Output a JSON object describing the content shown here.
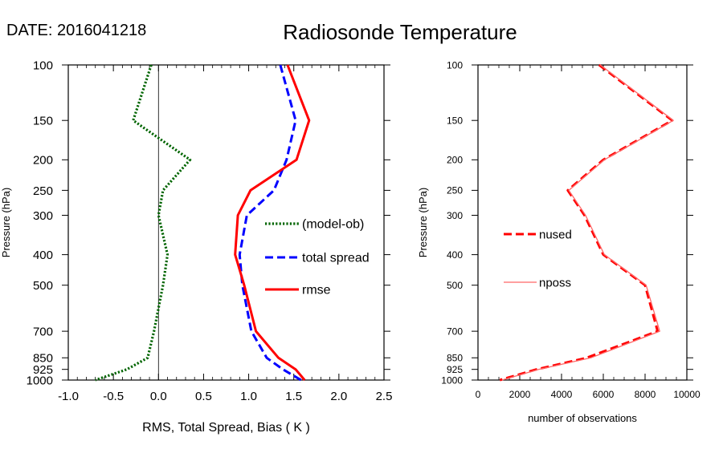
{
  "header": {
    "date_label": "DATE: 2016041218",
    "title": "Radiosonde Temperature"
  },
  "colors": {
    "model_ob": "#006400",
    "total_spread": "#0000ff",
    "rmse": "#ff0000",
    "nused": "#ff0000",
    "nposs": "#ff6666"
  },
  "chart_data": [
    {
      "type": "line",
      "title": "",
      "xlabel": "RMS, Total Spread, Bias ( K )",
      "ylabel": "Pressure (hPa)",
      "xlim": [
        -1.0,
        2.5
      ],
      "ylim": [
        1000,
        100
      ],
      "y_scale": "log",
      "y_inverted": true,
      "x_ticks": [
        "-1.0",
        "-0.5",
        "0.0",
        "0.5",
        "1.0",
        "1.5",
        "2.0",
        "2.5"
      ],
      "x_tick_values": [
        -1.0,
        -0.5,
        0.0,
        0.5,
        1.0,
        1.5,
        2.0,
        2.5
      ],
      "y_ticks": [
        "100",
        "150",
        "200",
        "250",
        "300",
        "400",
        "500",
        "700",
        "850",
        "925",
        "1000"
      ],
      "y_tick_values": [
        100,
        150,
        200,
        250,
        300,
        400,
        500,
        700,
        850,
        925,
        1000
      ],
      "zero_line": true,
      "legend": "right-middle",
      "series": [
        {
          "name": "(model-ob)",
          "style": "dotted",
          "color": "#006400",
          "points": [
            [
              -0.08,
              100
            ],
            [
              -0.28,
              150
            ],
            [
              0.35,
              200
            ],
            [
              0.05,
              250
            ],
            [
              0.0,
              300
            ],
            [
              0.1,
              400
            ],
            [
              0.05,
              500
            ],
            [
              -0.05,
              700
            ],
            [
              -0.12,
              850
            ],
            [
              -0.35,
              925
            ],
            [
              -0.7,
              1000
            ]
          ]
        },
        {
          "name": "total spread",
          "style": "dashed",
          "color": "#0000ff",
          "points": [
            [
              1.35,
              100
            ],
            [
              1.52,
              150
            ],
            [
              1.42,
              200
            ],
            [
              1.28,
              250
            ],
            [
              0.98,
              300
            ],
            [
              0.9,
              400
            ],
            [
              0.93,
              500
            ],
            [
              1.03,
              700
            ],
            [
              1.2,
              850
            ],
            [
              1.38,
              925
            ],
            [
              1.58,
              1000
            ]
          ]
        },
        {
          "name": "rmse",
          "style": "solid",
          "color": "#ff0000",
          "points": [
            [
              1.43,
              100
            ],
            [
              1.67,
              150
            ],
            [
              1.53,
              200
            ],
            [
              1.02,
              250
            ],
            [
              0.88,
              300
            ],
            [
              0.85,
              400
            ],
            [
              0.95,
              500
            ],
            [
              1.08,
              700
            ],
            [
              1.33,
              850
            ],
            [
              1.52,
              925
            ],
            [
              1.62,
              1000
            ]
          ]
        }
      ]
    },
    {
      "type": "line",
      "title": "",
      "xlabel": "number of observations",
      "ylabel": "Pressure (hPa)",
      "xlim": [
        0,
        10000
      ],
      "ylim": [
        1000,
        100
      ],
      "y_scale": "log",
      "y_inverted": true,
      "x_ticks": [
        "0",
        "2000",
        "4000",
        "6000",
        "8000",
        "10000"
      ],
      "x_tick_values": [
        0,
        2000,
        4000,
        6000,
        8000,
        10000
      ],
      "y_ticks": [
        "100",
        "150",
        "200",
        "250",
        "300",
        "400",
        "500",
        "700",
        "850",
        "925",
        "1000"
      ],
      "y_tick_values": [
        100,
        150,
        200,
        250,
        300,
        400,
        500,
        700,
        850,
        925,
        1000
      ],
      "legend": "left-middle",
      "series": [
        {
          "name": "nused",
          "style": "dashed",
          "color": "#ff0000",
          "points": [
            [
              5800,
              100
            ],
            [
              9300,
              150
            ],
            [
              6000,
              200
            ],
            [
              4300,
              250
            ],
            [
              5100,
              300
            ],
            [
              6000,
              400
            ],
            [
              8000,
              500
            ],
            [
              8600,
              700
            ],
            [
              5200,
              850
            ],
            [
              2800,
              925
            ],
            [
              1050,
              1000
            ]
          ]
        },
        {
          "name": "nposs",
          "style": "solid",
          "color": "#ff6666",
          "points": [
            [
              5850,
              100
            ],
            [
              9350,
              150
            ],
            [
              6050,
              200
            ],
            [
              4350,
              250
            ],
            [
              5150,
              300
            ],
            [
              6050,
              400
            ],
            [
              8050,
              500
            ],
            [
              8700,
              700
            ],
            [
              5400,
              850
            ],
            [
              2900,
              925
            ],
            [
              1150,
              1000
            ]
          ]
        }
      ]
    }
  ]
}
